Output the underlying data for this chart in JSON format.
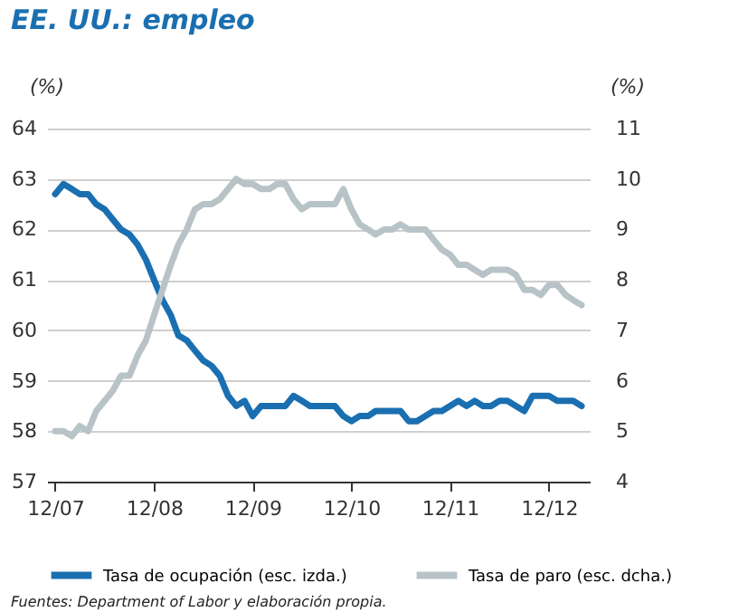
{
  "chart_data": {
    "type": "line",
    "title": "EE. UU.: empleo",
    "ylabel": "(%)",
    "y2label": "(%)",
    "x": [
      "2007-12",
      "2008-01",
      "2008-02",
      "2008-03",
      "2008-04",
      "2008-05",
      "2008-06",
      "2008-07",
      "2008-08",
      "2008-09",
      "2008-10",
      "2008-11",
      "2008-12",
      "2009-01",
      "2009-02",
      "2009-03",
      "2009-04",
      "2009-05",
      "2009-06",
      "2009-07",
      "2009-08",
      "2009-09",
      "2009-10",
      "2009-11",
      "2009-12",
      "2010-01",
      "2010-02",
      "2010-03",
      "2010-04",
      "2010-05",
      "2010-06",
      "2010-07",
      "2010-08",
      "2010-09",
      "2010-10",
      "2010-11",
      "2010-12",
      "2011-01",
      "2011-02",
      "2011-03",
      "2011-04",
      "2011-05",
      "2011-06",
      "2011-07",
      "2011-08",
      "2011-09",
      "2011-10",
      "2011-11",
      "2011-12",
      "2012-01",
      "2012-02",
      "2012-03",
      "2012-04",
      "2012-05",
      "2012-06",
      "2012-07",
      "2012-08",
      "2012-09",
      "2012-10",
      "2012-11",
      "2012-12",
      "2013-01",
      "2013-02",
      "2013-03",
      "2013-04"
    ],
    "series": [
      {
        "name": "Tasa de ocupación (esc. izda.)",
        "color": "#1a6fb0",
        "values": [
          62.7,
          62.9,
          62.8,
          62.7,
          62.7,
          62.5,
          62.4,
          62.2,
          62.0,
          61.9,
          61.7,
          61.4,
          61.0,
          60.6,
          60.3,
          59.9,
          59.8,
          59.6,
          59.4,
          59.3,
          59.1,
          58.7,
          58.5,
          58.6,
          58.3,
          58.5,
          58.5,
          58.5,
          58.5,
          58.7,
          58.6,
          58.5,
          58.5,
          58.5,
          58.5,
          58.3,
          58.2,
          58.3,
          58.3,
          58.4,
          58.4,
          58.4,
          58.4,
          58.2,
          58.2,
          58.3,
          58.4,
          58.4,
          58.5,
          58.6,
          58.5,
          58.6,
          58.5,
          58.5,
          58.6,
          58.6,
          58.5,
          58.4,
          58.7,
          58.7,
          58.7,
          58.6,
          58.6,
          58.6,
          58.5
        ]
      },
      {
        "name": "Tasa de paro (esc. dcha.)",
        "color": "#b8c3c7",
        "axis": "y2",
        "values": [
          5.0,
          5.0,
          4.9,
          5.1,
          5.0,
          5.4,
          5.6,
          5.8,
          6.1,
          6.1,
          6.5,
          6.8,
          7.3,
          7.8,
          8.3,
          8.7,
          9.0,
          9.4,
          9.5,
          9.5,
          9.6,
          9.8,
          10.0,
          9.9,
          9.9,
          9.8,
          9.8,
          9.9,
          9.9,
          9.6,
          9.4,
          9.5,
          9.5,
          9.5,
          9.5,
          9.8,
          9.4,
          9.1,
          9.0,
          8.9,
          9.0,
          9.0,
          9.1,
          9.0,
          9.0,
          9.0,
          8.8,
          8.6,
          8.5,
          8.3,
          8.3,
          8.2,
          8.1,
          8.2,
          8.2,
          8.2,
          8.1,
          7.8,
          7.8,
          7.7,
          7.9,
          7.9,
          7.7,
          7.6,
          7.5
        ]
      }
    ],
    "xlim": [
      "2007-11",
      "2013-05"
    ],
    "xticks": [
      {
        "value": "2007-12",
        "label": "12/07"
      },
      {
        "value": "2008-12",
        "label": "12/08"
      },
      {
        "value": "2009-12",
        "label": "12/09"
      },
      {
        "value": "2010-12",
        "label": "12/10"
      },
      {
        "value": "2011-12",
        "label": "12/11"
      },
      {
        "value": "2012-12",
        "label": "12/12"
      }
    ],
    "ylim": [
      57,
      64
    ],
    "yticks": [
      57,
      58,
      59,
      60,
      61,
      62,
      63,
      64
    ],
    "y2lim": [
      4,
      11
    ],
    "y2ticks": [
      4,
      5,
      6,
      7,
      8,
      9,
      10,
      11
    ],
    "grid": "y",
    "legend": "bottom",
    "line_style": "solid",
    "marker": "none",
    "annotations": [
      "Fuentes: Department of Labor y elaboración propia."
    ]
  }
}
